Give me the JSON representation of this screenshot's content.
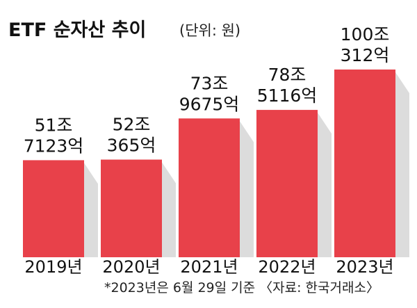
{
  "chart_data": {
    "type": "bar",
    "title": "ETF 순자산 추이",
    "subtitle": "(단위: 원)",
    "categories": [
      "2019년",
      "2020년",
      "2021년",
      "2022년",
      "2023년"
    ],
    "values": [
      51.7123,
      52.0365,
      73.9675,
      78.5116,
      100.0312
    ],
    "value_unit": "조원",
    "data_labels": [
      [
        "51조",
        "7123억"
      ],
      [
        "52조",
        "365억"
      ],
      [
        "73조",
        "9675억"
      ],
      [
        "78조",
        "5116억"
      ],
      [
        "100조",
        "312억"
      ]
    ],
    "bar_color": "#e8414a",
    "shadow_color": "#dcdcdc",
    "grid": false,
    "legend": "none",
    "footnote": "*2023년은 6월 29일 기준 〈자료: 한국거래소〉"
  }
}
